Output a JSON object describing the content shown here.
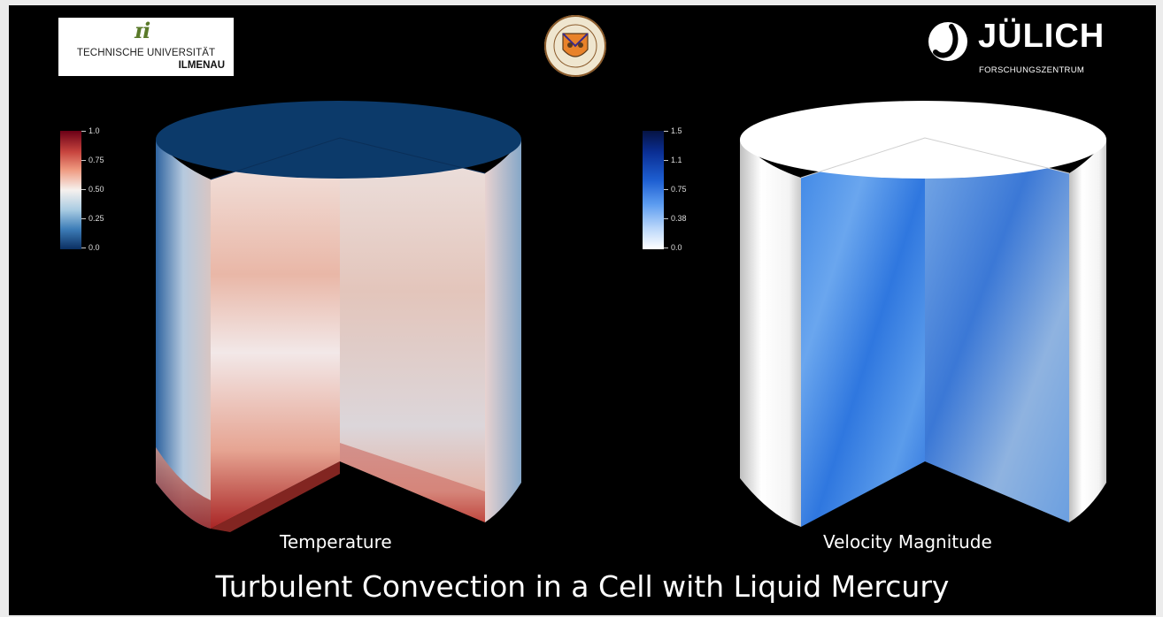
{
  "logos": {
    "tu_ilmenau": {
      "mark": "ɪi",
      "line1": "TECHNISCHE UNIVERSITÄT",
      "line2": "ILMENAU"
    },
    "occidental_seal": {
      "icon": "seal-icon"
    },
    "juelich": {
      "name": "JÜLICH",
      "subtitle": "FORSCHUNGSZENTRUM"
    }
  },
  "colorbars": {
    "temperature": {
      "ticks": [
        "1.0",
        "0.75",
        "0.50",
        "0.25",
        "0.0"
      ],
      "colors": [
        "#6b0016",
        "#f6f1ee",
        "#0b2f62"
      ]
    },
    "velocity": {
      "ticks": [
        "1.5",
        "1.1",
        "0.75",
        "0.38",
        "0.0"
      ],
      "colors": [
        "#061343",
        "#1e5fd2",
        "#ffffff"
      ]
    }
  },
  "panels": {
    "temperature_label": "Temperature",
    "velocity_label": "Velocity Magnitude"
  },
  "title": "Turbulent Convection in a Cell with Liquid Mercury"
}
